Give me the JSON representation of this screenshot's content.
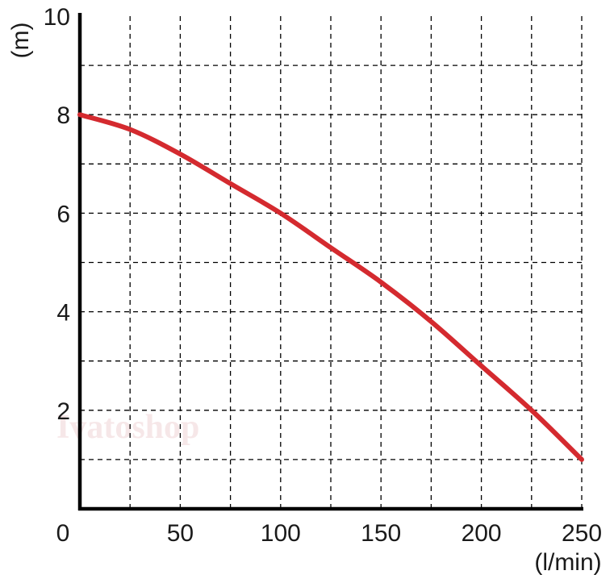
{
  "chart_data": {
    "type": "line",
    "title": "",
    "xlabel": "(l/min)",
    "ylabel": "(m)",
    "xlim": [
      0,
      250
    ],
    "ylim": [
      0,
      10
    ],
    "x_ticks": [
      0,
      50,
      100,
      150,
      200,
      250
    ],
    "y_ticks": [
      2,
      4,
      6,
      8,
      10
    ],
    "x_grid_step": 25,
    "y_grid_step": 1,
    "grid": true,
    "grid_style": "dashed",
    "series": [
      {
        "color": "#d42a2f",
        "x": [
          0,
          25,
          50,
          75,
          100,
          125,
          150,
          175,
          200,
          225,
          250
        ],
        "y": [
          8.0,
          7.7,
          7.2,
          6.6,
          6.0,
          5.3,
          4.6,
          3.8,
          2.9,
          2.0,
          1.0
        ]
      }
    ]
  },
  "watermark": "Ivatoshop"
}
